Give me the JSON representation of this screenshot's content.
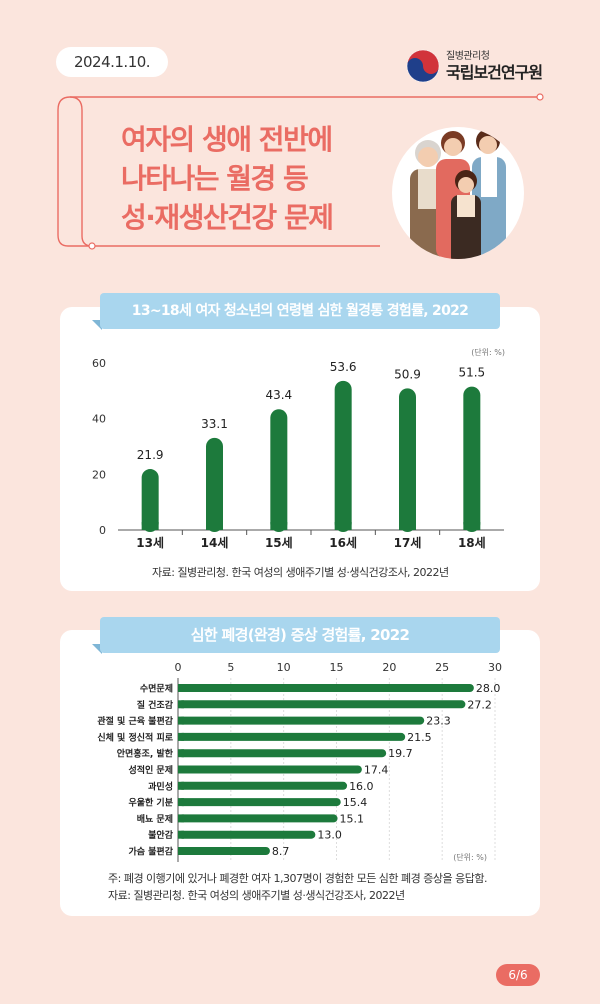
{
  "date": "2024.1.10.",
  "logo": {
    "sub": "질병관리청",
    "main": "국립보건연구원",
    "emblem": "taegeuk-emblem"
  },
  "headline": [
    "여자의 생애 전반에",
    "나타나는 월경 등",
    "성·재생산건강 문제"
  ],
  "page_badge": "6/6",
  "colors": {
    "bar": "#1d7a3c",
    "headline": "#ea6c63",
    "ribbon": "#a9d6ee",
    "background": "#fbe5dd"
  },
  "chart_data": [
    {
      "type": "bar",
      "title": "13~18세 여자 청소년의 연령별 심한 월경통 경험률, 2022",
      "unit": "(단위: %)",
      "categories": [
        "13세",
        "14세",
        "15세",
        "16세",
        "17세",
        "18세"
      ],
      "values": [
        21.9,
        33.1,
        43.4,
        53.6,
        50.9,
        51.5
      ],
      "value_labels": [
        "21.9",
        "33.1",
        "43.4",
        "53.6",
        "50.9",
        "51.5"
      ],
      "ylim": [
        0,
        60
      ],
      "yticks": [
        "0",
        "20",
        "40",
        "60"
      ],
      "source": "자료: 질병관리청. 한국 여성의 생애주기별 성·생식건강조사, 2022년"
    },
    {
      "type": "bar",
      "orientation": "horizontal",
      "title": "심한 폐경(완경) 증상 경험률, 2022",
      "unit": "(단위: %)",
      "categories": [
        "수면문제",
        "질 건조감",
        "관절 및 근육 불편감",
        "신체 및 정신적 피로",
        "안면홍조, 발한",
        "성적인 문제",
        "과민성",
        "우울한 기분",
        "배뇨 문제",
        "불안감",
        "가슴 불편감"
      ],
      "values": [
        28.0,
        27.2,
        23.3,
        21.5,
        19.7,
        17.4,
        16.0,
        15.4,
        15.1,
        13.0,
        8.7
      ],
      "value_labels": [
        "28.0",
        "27.2",
        "23.3",
        "21.5",
        "19.7",
        "17.4",
        "16.0",
        "15.4",
        "15.1",
        "13.0",
        "8.7"
      ],
      "xlim": [
        0,
        30
      ],
      "xticks": [
        "0",
        "5",
        "10",
        "15",
        "20",
        "25",
        "30"
      ],
      "note": "주: 폐경 이행기에 있거나 폐경한 여자 1,307명이 경험한 모든 심한 폐경 증상을 응답함.",
      "source": "자료: 질병관리청. 한국 여성의 생애주기별 성·생식건강조사, 2022년"
    }
  ]
}
